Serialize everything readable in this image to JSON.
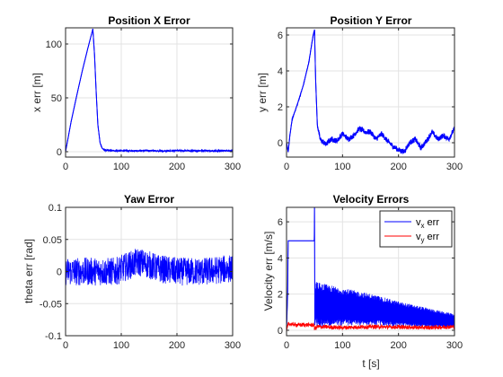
{
  "chart_data": [
    {
      "id": "pos_x",
      "type": "line",
      "title": "Position X Error",
      "xlabel": "",
      "ylabel": "x err [m]",
      "xlim": [
        0,
        300
      ],
      "ylim": [
        -5,
        115
      ],
      "xticks": [
        0,
        100,
        200,
        300
      ],
      "yticks": [
        0,
        50,
        100
      ],
      "grid": true,
      "series": [
        {
          "color": "#0000ff",
          "x": [
            0,
            10,
            20,
            30,
            40,
            49,
            52,
            55,
            58,
            62,
            66,
            70,
            80,
            100,
            120,
            150,
            180,
            200,
            220,
            250,
            270,
            290,
            300
          ],
          "y": [
            0,
            28,
            52,
            75,
            96,
            114,
            90,
            55,
            25,
            8,
            3,
            1.5,
            1,
            0.8,
            0.9,
            1,
            0.6,
            1,
            0.8,
            1,
            0.7,
            1,
            0.8
          ],
          "noise": 0.6
        }
      ]
    },
    {
      "id": "pos_y",
      "type": "line",
      "title": "Position Y Error",
      "xlabel": "",
      "ylabel": "y err [m]",
      "xlim": [
        0,
        300
      ],
      "ylim": [
        -0.8,
        6.4
      ],
      "xticks": [
        0,
        100,
        200,
        300
      ],
      "yticks": [
        0,
        2,
        4,
        6
      ],
      "grid": true,
      "series": [
        {
          "color": "#0000ff",
          "x": [
            0,
            3,
            6,
            10,
            20,
            30,
            40,
            47,
            50,
            52,
            55,
            60,
            70,
            80,
            90,
            100,
            110,
            120,
            130,
            140,
            150,
            160,
            170,
            180,
            190,
            200,
            210,
            220,
            230,
            240,
            250,
            260,
            270,
            280,
            290,
            300
          ],
          "y": [
            0,
            -0.5,
            0.4,
            1.3,
            2.2,
            3.2,
            4.5,
            5.9,
            6.3,
            3.5,
            1.0,
            0.2,
            -0.1,
            0.2,
            0.1,
            0.5,
            0.2,
            0.4,
            0.8,
            0.6,
            0.6,
            0.2,
            0.5,
            0.1,
            -0.2,
            -0.4,
            -0.5,
            0.0,
            0.2,
            -0.3,
            0.1,
            0.6,
            0.2,
            0.4,
            0.2,
            0.8
          ],
          "noise": 0.15
        }
      ]
    },
    {
      "id": "yaw",
      "type": "line",
      "title": "Yaw Error",
      "xlabel": "",
      "ylabel": "theta err [rad]",
      "xlim": [
        0,
        300
      ],
      "ylim": [
        -0.1,
        0.1
      ],
      "xticks": [
        0,
        100,
        200,
        300
      ],
      "yticks": [
        -0.1,
        -0.05,
        0,
        0.05,
        0.1
      ],
      "ytick_labels": [
        "-0.1",
        "-0.05",
        "0",
        "0.05",
        "0.1"
      ],
      "grid": true,
      "series": [
        {
          "color": "#0000ff",
          "x": [
            0,
            50,
            90,
            110,
            130,
            145,
            165,
            200,
            250,
            300
          ],
          "y": [
            0,
            0,
            0,
            0.008,
            0.015,
            0.012,
            0.005,
            0,
            0,
            0.005
          ],
          "noise": 0.022
        }
      ]
    },
    {
      "id": "vel",
      "type": "line",
      "title": "Velocity Errors",
      "xlabel": "t [s]",
      "ylabel": "Velocity err [m/s]",
      "xlim": [
        0,
        300
      ],
      "ylim": [
        -0.3,
        6.8
      ],
      "xticks": [
        0,
        100,
        200,
        300
      ],
      "yticks": [
        0,
        2,
        4,
        6
      ],
      "grid": true,
      "legend": {
        "position": "top-right"
      },
      "series": [
        {
          "name": "v",
          "name_sub": "x",
          "name_suffix": " err",
          "color": "#0000ff",
          "x": [
            0,
            2,
            3,
            49.5,
            50,
            50.5,
            52,
            60,
            100,
            150,
            200,
            250,
            300
          ],
          "y": [
            0,
            2.0,
            4.95,
            4.95,
            6.8,
            0.3,
            1.5,
            1.4,
            1.3,
            1.15,
            0.9,
            0.7,
            0.5
          ],
          "band_after": 52,
          "band_amp": [
            52,
            1.25,
            100,
            1.05,
            200,
            0.7,
            300,
            0.4
          ]
        },
        {
          "name": "v",
          "name_sub": "y",
          "name_suffix": " err",
          "color": "#ff0000",
          "x": [
            0,
            3,
            20,
            49.5,
            50,
            55,
            100,
            150,
            200,
            250,
            300
          ],
          "y": [
            0,
            0.35,
            0.3,
            0.3,
            0.05,
            0.2,
            0.15,
            0.2,
            0.18,
            0.15,
            0.2
          ],
          "noise": 0.12
        }
      ]
    }
  ]
}
